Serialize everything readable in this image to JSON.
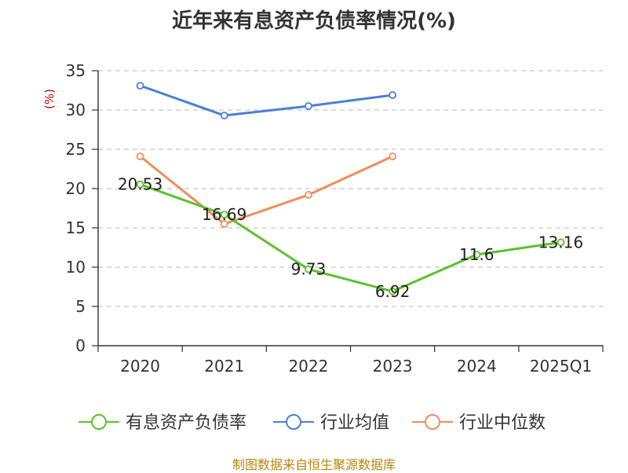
{
  "title": "近年来有息资产负债率情况(%)",
  "footer": "制图数据来自恒生聚源数据库",
  "colors": {
    "footer": "#b8860b",
    "unit": "#cc0000",
    "grid": "#c8c8c8",
    "axis": "#333333"
  },
  "chart_data": {
    "type": "line",
    "categories": [
      "2020",
      "2021",
      "2022",
      "2023",
      "2024",
      "2025Q1"
    ],
    "ylabel": "(%)",
    "ylim": [
      0,
      35
    ],
    "yticks": [
      0,
      5,
      10,
      15,
      20,
      25,
      30,
      35
    ],
    "grid": true,
    "legend_position": "bottom",
    "series": [
      {
        "name": "有息资产负债率",
        "color": "#5bc12a",
        "values": [
          20.53,
          16.69,
          9.73,
          6.92,
          11.6,
          13.16
        ],
        "labels": [
          "20.53",
          "16.69",
          "9.73",
          "6.92",
          "11.6",
          "13.16"
        ]
      },
      {
        "name": "行业均值",
        "color": "#4a7fd8",
        "values": [
          33.1,
          29.3,
          30.5,
          31.9,
          null,
          null
        ]
      },
      {
        "name": "行业中位数",
        "color": "#f28c5a",
        "values": [
          24.1,
          15.5,
          19.2,
          24.1,
          null,
          null
        ]
      }
    ]
  }
}
